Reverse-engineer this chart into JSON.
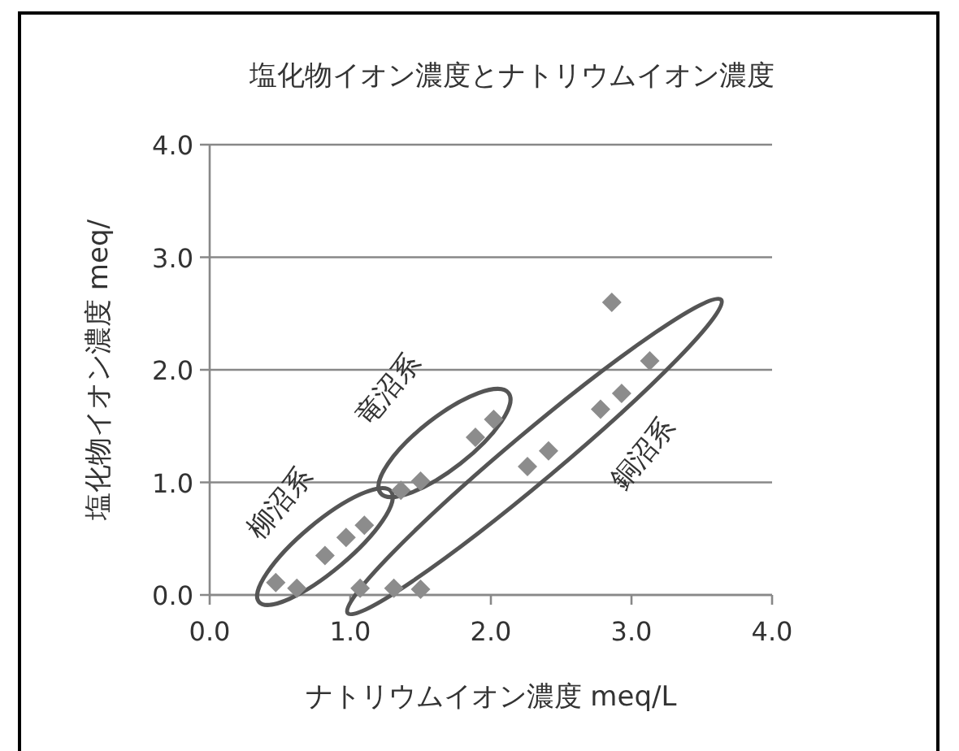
{
  "chart_data": {
    "type": "scatter",
    "title": "塩化物イオン濃度とナトリウムイオン濃度",
    "xlabel": "ナトリウムイオン濃度  meq/L",
    "ylabel": "塩化物イオン濃度  meq/",
    "x": [
      0.47,
      0.62,
      0.82,
      0.97,
      1.1,
      1.07,
      1.31,
      1.5,
      1.36,
      1.5,
      1.89,
      2.02,
      2.26,
      2.41,
      2.78,
      2.93,
      3.13,
      2.86
    ],
    "series": [
      {
        "color": "#8c8c8c",
        "values": [
          0.11,
          0.06,
          0.35,
          0.51,
          0.62,
          0.06,
          0.06,
          0.05,
          0.93,
          1.01,
          1.4,
          1.56,
          1.14,
          1.28,
          1.65,
          1.79,
          2.08,
          2.6
        ]
      }
    ],
    "xlim": [
      0,
      4
    ],
    "ylim": [
      0,
      4
    ],
    "xticks": [
      {
        "value": 0,
        "label": "0.0"
      },
      {
        "value": 1,
        "label": "1.0"
      },
      {
        "value": 2,
        "label": "2.0"
      },
      {
        "value": 3,
        "label": "3.0"
      },
      {
        "value": 4,
        "label": "4.0"
      }
    ],
    "yticks": [
      {
        "value": 0,
        "label": "0.0"
      },
      {
        "value": 1,
        "label": "1.0"
      },
      {
        "value": 2,
        "label": "2.0"
      },
      {
        "value": 3,
        "label": "3.0"
      },
      {
        "value": 4,
        "label": "4.0"
      }
    ],
    "grid": "y",
    "marker": "diamond",
    "annotations": [
      "柳沼系",
      "竜沼系",
      "銅沼系"
    ]
  }
}
